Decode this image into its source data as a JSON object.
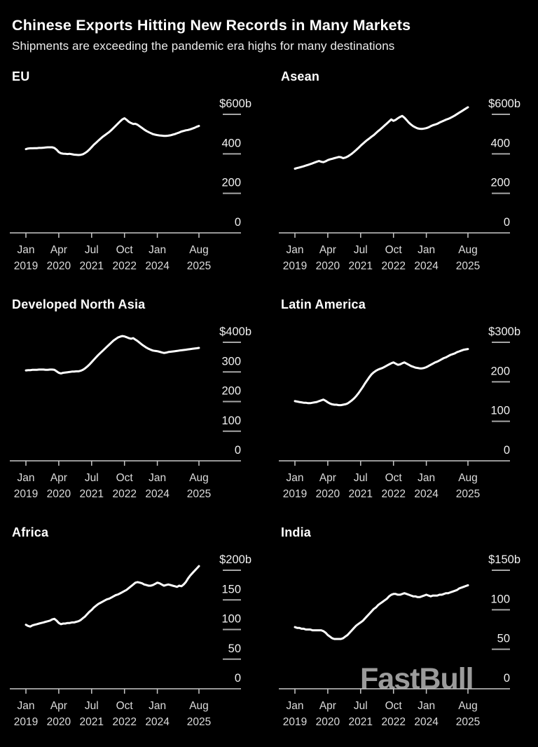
{
  "header": {
    "title": "Chinese Exports Hitting New Records in Many Markets",
    "subtitle": "Shipments are exceeding the pandemic era highs for many destinations"
  },
  "watermark": "FastBull",
  "colors": {
    "background": "#000000",
    "series_line": "#ffffff",
    "axis_line": "#c9c9c9",
    "tick_dash": "#a6a6a6",
    "y_label": "#f0f0f0",
    "x_label": "#dcdcdc"
  },
  "x_axis": {
    "tick_labels": [
      [
        "Jan",
        "2019"
      ],
      [
        "Apr",
        "2020"
      ],
      [
        "Jul",
        "2021"
      ],
      [
        "Oct",
        "2022"
      ],
      [
        "Jan",
        "2024"
      ],
      [
        "Aug",
        "2025"
      ]
    ],
    "start": "Jan 2019",
    "end": "Aug 2025",
    "frequency": "monthly"
  },
  "chart_data": [
    {
      "type": "line",
      "title": "EU",
      "ylim": [
        0,
        600
      ],
      "y_ticks": [
        {
          "label": "$600b",
          "value": 600
        },
        {
          "label": "400",
          "value": 400
        },
        {
          "label": "200",
          "value": 200
        },
        {
          "label": "0",
          "value": 0
        }
      ],
      "values": [
        424,
        427,
        428,
        428,
        429,
        429,
        430,
        430,
        431,
        432,
        433,
        433,
        433,
        430,
        421,
        409,
        403,
        401,
        400,
        399,
        400,
        398,
        396,
        395,
        394,
        395,
        398,
        404,
        412,
        422,
        434,
        446,
        456,
        466,
        476,
        486,
        494,
        502,
        510,
        520,
        531,
        542,
        553,
        564,
        574,
        580,
        572,
        562,
        556,
        551,
        552,
        547,
        539,
        531,
        523,
        516,
        510,
        505,
        500,
        497,
        495,
        493,
        492,
        491,
        491,
        492,
        494,
        497,
        500,
        504,
        508,
        513,
        516,
        519,
        521,
        524,
        528,
        532,
        537,
        541
      ]
    },
    {
      "type": "line",
      "title": "Asean",
      "ylim": [
        0,
        600
      ],
      "y_ticks": [
        {
          "label": "$600b",
          "value": 600
        },
        {
          "label": "400",
          "value": 400
        },
        {
          "label": "200",
          "value": 200
        },
        {
          "label": "0",
          "value": 0
        }
      ],
      "values": [
        325,
        328,
        331,
        334,
        337,
        341,
        344,
        348,
        352,
        356,
        360,
        364,
        360,
        358,
        362,
        368,
        372,
        375,
        378,
        381,
        384,
        383,
        378,
        381,
        386,
        393,
        401,
        410,
        420,
        430,
        441,
        451,
        461,
        470,
        478,
        487,
        495,
        505,
        515,
        524,
        534,
        544,
        554,
        564,
        574,
        567,
        572,
        580,
        587,
        592,
        583,
        571,
        558,
        548,
        540,
        534,
        529,
        527,
        526,
        528,
        530,
        534,
        540,
        545,
        548,
        552,
        558,
        563,
        568,
        573,
        577,
        582,
        588,
        594,
        601,
        608,
        615,
        622,
        629,
        636
      ]
    },
    {
      "type": "line",
      "title": "Developed North Asia",
      "ylim": [
        0,
        400
      ],
      "y_ticks": [
        {
          "label": "$400b",
          "value": 400
        },
        {
          "label": "300",
          "value": 300
        },
        {
          "label": "200",
          "value": 200
        },
        {
          "label": "100",
          "value": 100
        },
        {
          "label": "0",
          "value": 0
        }
      ],
      "values": [
        305,
        306,
        306,
        307,
        307,
        307,
        308,
        308,
        308,
        307,
        307,
        308,
        308,
        307,
        302,
        297,
        295,
        297,
        298,
        299,
        300,
        301,
        301,
        302,
        302,
        304,
        307,
        312,
        318,
        325,
        333,
        341,
        349,
        357,
        364,
        371,
        378,
        385,
        392,
        399,
        406,
        411,
        416,
        419,
        421,
        420,
        417,
        414,
        412,
        414,
        409,
        404,
        398,
        392,
        387,
        382,
        378,
        375,
        372,
        371,
        370,
        368,
        366,
        364,
        365,
        367,
        368,
        369,
        370,
        371,
        372,
        373,
        374,
        375,
        376,
        377,
        378,
        379,
        380,
        381
      ]
    },
    {
      "type": "line",
      "title": "Latin America",
      "ylim": [
        0,
        300
      ],
      "y_ticks": [
        {
          "label": "$300b",
          "value": 300
        },
        {
          "label": "200",
          "value": 200
        },
        {
          "label": "100",
          "value": 100
        },
        {
          "label": "0",
          "value": 0
        }
      ],
      "values": [
        151,
        150,
        149,
        148,
        147,
        147,
        146,
        146,
        147,
        148,
        149,
        151,
        153,
        155,
        152,
        148,
        145,
        143,
        142,
        142,
        141,
        141,
        142,
        143,
        145,
        149,
        153,
        158,
        164,
        171,
        179,
        187,
        196,
        204,
        212,
        219,
        224,
        228,
        231,
        233,
        235,
        238,
        241,
        244,
        247,
        249,
        246,
        243,
        244,
        247,
        249,
        246,
        243,
        240,
        238,
        236,
        235,
        234,
        234,
        235,
        237,
        240,
        243,
        246,
        249,
        251,
        254,
        257,
        260,
        262,
        265,
        268,
        270,
        272,
        275,
        277,
        279,
        281,
        282,
        283
      ]
    },
    {
      "type": "line",
      "title": "Africa",
      "ylim": [
        0,
        200
      ],
      "y_ticks": [
        {
          "label": "$200b",
          "value": 200
        },
        {
          "label": "150",
          "value": 150
        },
        {
          "label": "100",
          "value": 100
        },
        {
          "label": "50",
          "value": 50
        },
        {
          "label": "0",
          "value": 0
        }
      ],
      "values": [
        108,
        106,
        105,
        107,
        108,
        109,
        110,
        111,
        112,
        113,
        114,
        115,
        117,
        118,
        115,
        111,
        109,
        110,
        110,
        111,
        111,
        112,
        112,
        113,
        114,
        116,
        119,
        122,
        126,
        130,
        133,
        137,
        140,
        143,
        145,
        147,
        149,
        151,
        152,
        154,
        156,
        158,
        159,
        161,
        163,
        165,
        167,
        170,
        173,
        176,
        179,
        180,
        179,
        178,
        176,
        175,
        174,
        174,
        175,
        177,
        179,
        178,
        176,
        174,
        175,
        176,
        175,
        174,
        173,
        172,
        174,
        173,
        176,
        180,
        186,
        191,
        195,
        199,
        203,
        207
      ]
    },
    {
      "type": "line",
      "title": "India",
      "ylim": [
        0,
        150
      ],
      "y_ticks": [
        {
          "label": "$150b",
          "value": 150
        },
        {
          "label": "100",
          "value": 100
        },
        {
          "label": "50",
          "value": 50
        },
        {
          "label": "0",
          "value": 0
        }
      ],
      "values": [
        78,
        77,
        77,
        76,
        76,
        75,
        75,
        75,
        74,
        74,
        74,
        74,
        74,
        73,
        71,
        68,
        66,
        64,
        63,
        63,
        63,
        63,
        64,
        66,
        68,
        71,
        74,
        77,
        80,
        82,
        84,
        86,
        89,
        92,
        95,
        98,
        101,
        103,
        106,
        108,
        110,
        112,
        114,
        117,
        119,
        120,
        120,
        119,
        119,
        120,
        121,
        120,
        119,
        118,
        117,
        117,
        116,
        116,
        117,
        118,
        119,
        118,
        117,
        118,
        118,
        118,
        119,
        119,
        120,
        121,
        121,
        122,
        123,
        124,
        125,
        127,
        128,
        129,
        130,
        131
      ]
    }
  ]
}
